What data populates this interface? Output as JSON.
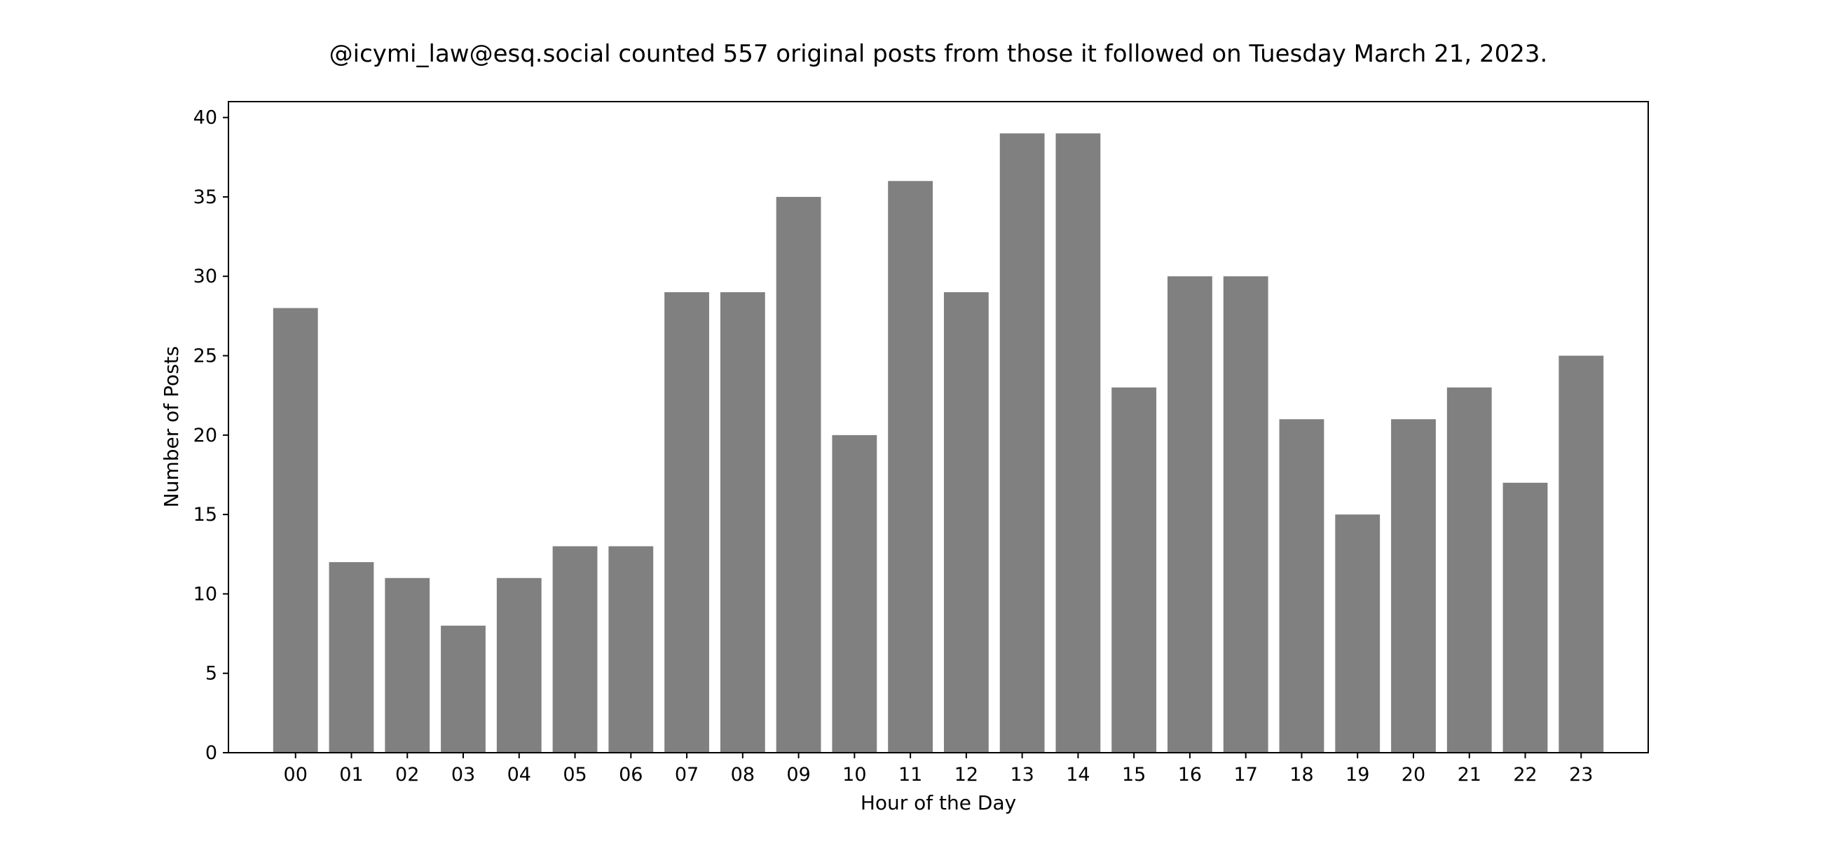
{
  "chart_data": {
    "type": "bar",
    "title": "@icymi_law@esq.social counted 557 original posts from those it followed on Tuesday March 21, 2023.",
    "xlabel": "Hour of the Day",
    "ylabel": "Number of Posts",
    "categories": [
      "00",
      "01",
      "02",
      "03",
      "04",
      "05",
      "06",
      "07",
      "08",
      "09",
      "10",
      "11",
      "12",
      "13",
      "14",
      "15",
      "16",
      "17",
      "18",
      "19",
      "20",
      "21",
      "22",
      "23"
    ],
    "values": [
      28,
      12,
      11,
      8,
      11,
      13,
      13,
      29,
      29,
      35,
      20,
      36,
      29,
      39,
      39,
      23,
      30,
      30,
      21,
      15,
      21,
      23,
      17,
      25
    ],
    "ylim": [
      0,
      41
    ],
    "yticks": [
      0,
      5,
      10,
      15,
      20,
      25,
      30,
      35,
      40
    ],
    "grid": false,
    "bar_color": "#808080",
    "axes_color": "#000000"
  }
}
